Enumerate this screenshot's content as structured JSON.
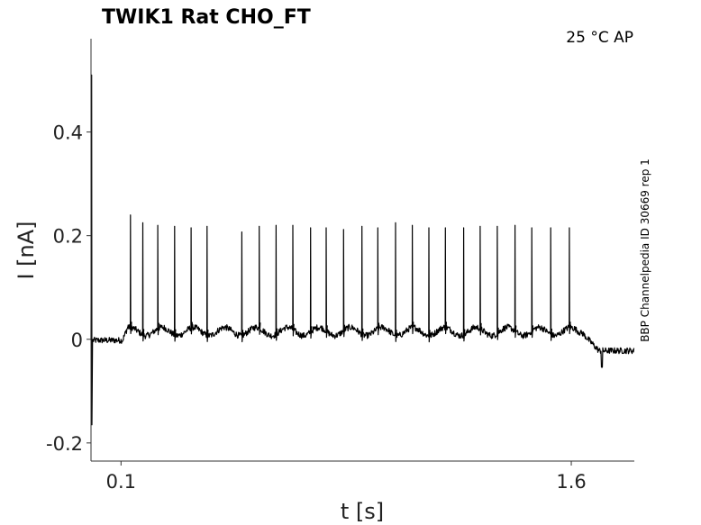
{
  "chart_data": {
    "type": "line",
    "title": "TWIK1  Rat  CHO_FT",
    "condition": "25 °C  AP",
    "xlabel": "t [s]",
    "ylabel": "I [nA]",
    "side_label": "BBP Channelpedia ID 30669 rep 1",
    "xlim": [
      0.0,
      1.81
    ],
    "ylim": [
      -0.235,
      0.58
    ],
    "x_ticks": [
      {
        "value": 0.1,
        "label": "0.1"
      },
      {
        "value": 1.6,
        "label": "1.6"
      }
    ],
    "y_ticks": [
      {
        "value": -0.2,
        "label": "-0.2"
      },
      {
        "value": 0,
        "label": "0"
      },
      {
        "value": 0.2,
        "label": "0.2"
      },
      {
        "value": 0.4,
        "label": "0.4"
      }
    ],
    "grid": false,
    "series": [
      {
        "color": "#000000",
        "baseline_before": -0.002,
        "stimulus_window": [
          0.105,
          1.632
        ],
        "baseline_during": 0.015,
        "baseline_after": -0.022,
        "onset_transient": {
          "t": 0.003,
          "max": 0.51,
          "min": -0.165
        },
        "spike_peaks": [
          [
            0.131,
            0.24
          ],
          [
            0.172,
            0.225
          ],
          [
            0.222,
            0.22
          ],
          [
            0.278,
            0.218
          ],
          [
            0.333,
            0.215
          ],
          [
            0.386,
            0.218
          ],
          [
            0.502,
            0.207
          ],
          [
            0.56,
            0.218
          ],
          [
            0.616,
            0.22
          ],
          [
            0.672,
            0.22
          ],
          [
            0.731,
            0.215
          ],
          [
            0.783,
            0.215
          ],
          [
            0.841,
            0.212
          ],
          [
            0.902,
            0.218
          ],
          [
            0.955,
            0.215
          ],
          [
            1.014,
            0.225
          ],
          [
            1.07,
            0.22
          ],
          [
            1.125,
            0.215
          ],
          [
            1.18,
            0.215
          ],
          [
            1.241,
            0.215
          ],
          [
            1.296,
            0.218
          ],
          [
            1.353,
            0.218
          ],
          [
            1.412,
            0.22
          ],
          [
            1.468,
            0.215
          ],
          [
            1.531,
            0.215
          ],
          [
            1.593,
            0.215
          ]
        ]
      }
    ]
  }
}
